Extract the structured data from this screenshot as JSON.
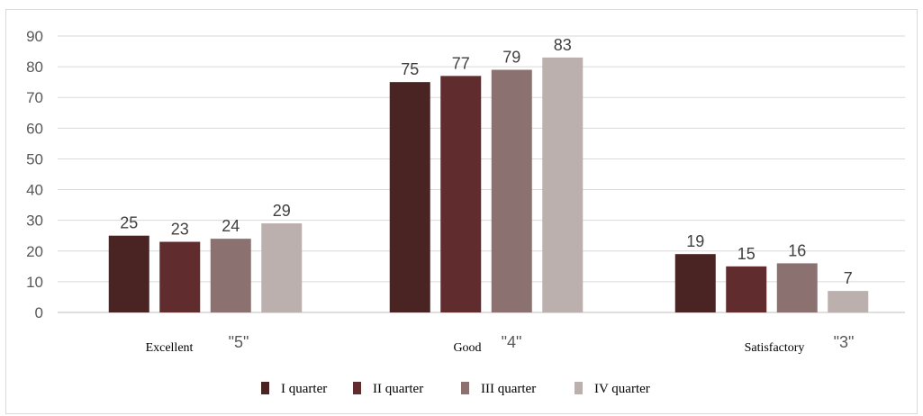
{
  "chart_data": {
    "type": "bar",
    "title": "",
    "xlabel": "",
    "ylabel": "",
    "ylim": [
      0,
      90
    ],
    "yticks": [
      0,
      10,
      20,
      30,
      40,
      50,
      60,
      70,
      80,
      90
    ],
    "grid": true,
    "legend_position": "bottom",
    "categories": [
      {
        "word": "Excellent",
        "grade": "\"5\""
      },
      {
        "word": "Good",
        "grade": "\"4\""
      },
      {
        "word": "Satisfactory",
        "grade": "\"3\""
      }
    ],
    "series": [
      {
        "name": "I quarter",
        "color": "#4a2323",
        "values": [
          25,
          75,
          19
        ]
      },
      {
        "name": "II quarter",
        "color": "#612c2e",
        "values": [
          23,
          77,
          15
        ]
      },
      {
        "name": "III quarter",
        "color": "#8b7270",
        "values": [
          24,
          79,
          16
        ]
      },
      {
        "name": "IV quarter",
        "color": "#bcb0ae",
        "values": [
          29,
          83,
          7
        ]
      }
    ],
    "gridline_color": "#d9d9d9",
    "axis_color": "#bfbfbf"
  }
}
